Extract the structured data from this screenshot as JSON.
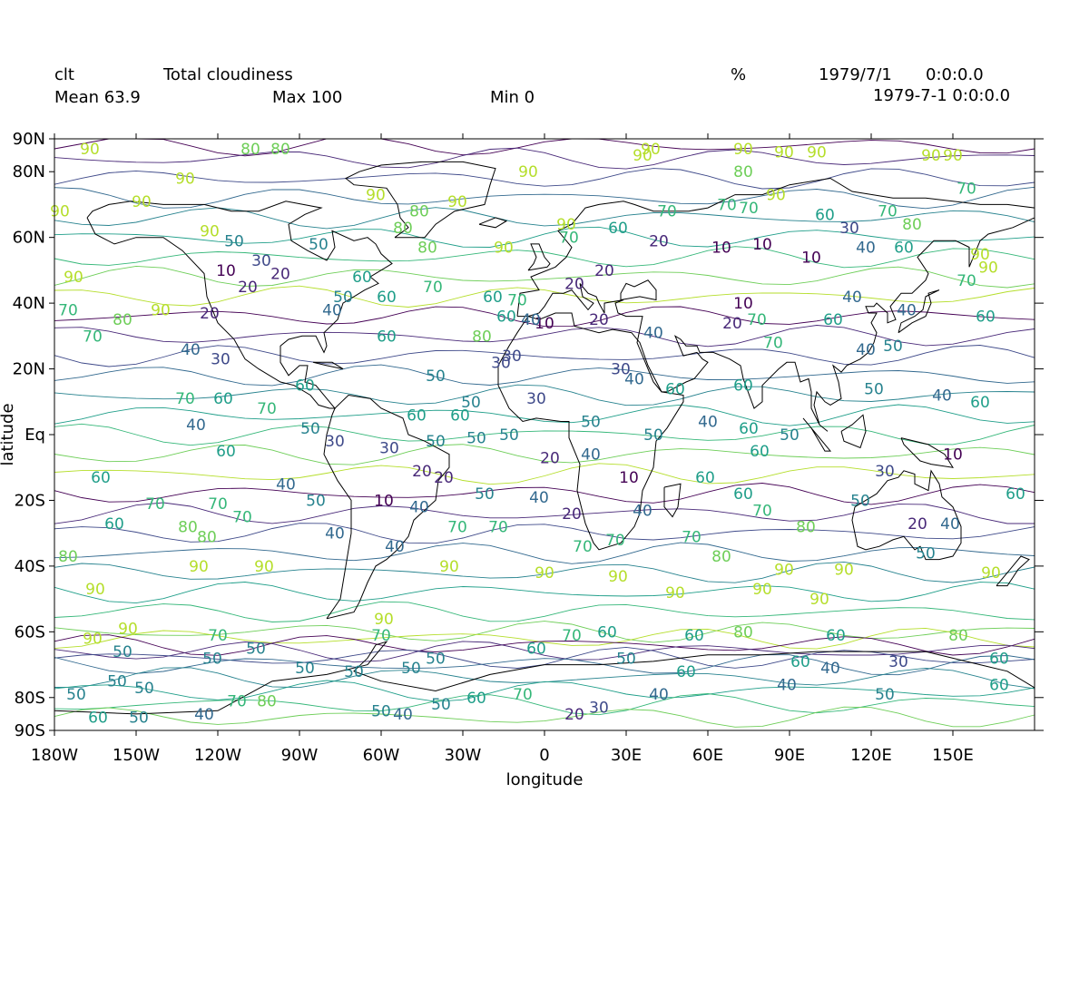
{
  "header": {
    "variable": "clt",
    "long_name": "Total cloudiness",
    "units": "%",
    "date": "1979/7/1",
    "time": "0:0:0.0",
    "mean": "Mean 63.9",
    "max": "Max 100",
    "min": "Min 0",
    "timestamp": "1979-7-1 0:0:0.0"
  },
  "axes": {
    "xlabel": "longitude",
    "ylabel": "latitude",
    "xlim": [
      -180,
      180
    ],
    "ylim": [
      -90,
      90
    ],
    "x_ticks": [
      {
        "value": -180,
        "label": "180W"
      },
      {
        "value": -150,
        "label": "150W"
      },
      {
        "value": -120,
        "label": "120W"
      },
      {
        "value": -90,
        "label": "90W"
      },
      {
        "value": -60,
        "label": "60W"
      },
      {
        "value": -30,
        "label": "30W"
      },
      {
        "value": 0,
        "label": "0"
      },
      {
        "value": 30,
        "label": "30E"
      },
      {
        "value": 60,
        "label": "60E"
      },
      {
        "value": 90,
        "label": "90E"
      },
      {
        "value": 120,
        "label": "120E"
      },
      {
        "value": 150,
        "label": "150E"
      }
    ],
    "y_ticks": [
      {
        "value": 90,
        "label": "90N"
      },
      {
        "value": 80,
        "label": "80N"
      },
      {
        "value": 60,
        "label": "60N"
      },
      {
        "value": 40,
        "label": "40N"
      },
      {
        "value": 20,
        "label": "20N"
      },
      {
        "value": 0,
        "label": "Eq"
      },
      {
        "value": -20,
        "label": "20S"
      },
      {
        "value": -40,
        "label": "40S"
      },
      {
        "value": -60,
        "label": "60S"
      },
      {
        "value": -80,
        "label": "80S"
      },
      {
        "value": -90,
        "label": "90S"
      }
    ]
  },
  "colors": {
    "10": "#440154",
    "20": "#482878",
    "30": "#3e4989",
    "40": "#31688e",
    "50": "#26828e",
    "60": "#1f9e89",
    "70": "#35b779",
    "80": "#6ece58",
    "90": "#b5de2b",
    "coast": "#000000"
  },
  "contour_labels": [
    {
      "lon": -167,
      "lat": 87,
      "v": 90
    },
    {
      "lon": -108,
      "lat": 87,
      "v": 80
    },
    {
      "lon": -97,
      "lat": 87,
      "v": 80
    },
    {
      "lon": -132,
      "lat": 78,
      "v": 90
    },
    {
      "lon": -148,
      "lat": 71,
      "v": 90
    },
    {
      "lon": -178,
      "lat": 68,
      "v": 90
    },
    {
      "lon": -123,
      "lat": 62,
      "v": 90
    },
    {
      "lon": -173,
      "lat": 48,
      "v": 90
    },
    {
      "lon": -175,
      "lat": 38,
      "v": 70
    },
    {
      "lon": -155,
      "lat": 35,
      "v": 80
    },
    {
      "lon": -166,
      "lat": 30,
      "v": 70
    },
    {
      "lon": -141,
      "lat": 38,
      "v": 90
    },
    {
      "lon": -114,
      "lat": 59,
      "v": 50
    },
    {
      "lon": -117,
      "lat": 50,
      "v": 10
    },
    {
      "lon": -109,
      "lat": 45,
      "v": 20
    },
    {
      "lon": -123,
      "lat": 37,
      "v": 20
    },
    {
      "lon": -130,
      "lat": 26,
      "v": 40
    },
    {
      "lon": -119,
      "lat": 23,
      "v": 30
    },
    {
      "lon": -97,
      "lat": 49,
      "v": 20
    },
    {
      "lon": -104,
      "lat": 53,
      "v": 30
    },
    {
      "lon": -83,
      "lat": 58,
      "v": 50
    },
    {
      "lon": -74,
      "lat": 42,
      "v": 50
    },
    {
      "lon": -67,
      "lat": 48,
      "v": 60
    },
    {
      "lon": -58,
      "lat": 42,
      "v": 60
    },
    {
      "lon": -58,
      "lat": 30,
      "v": 60
    },
    {
      "lon": -41,
      "lat": 45,
      "v": 70
    },
    {
      "lon": -46,
      "lat": 68,
      "v": 80
    },
    {
      "lon": -62,
      "lat": 73,
      "v": 90
    },
    {
      "lon": -52,
      "lat": 63,
      "v": 80
    },
    {
      "lon": -43,
      "lat": 57,
      "v": 80
    },
    {
      "lon": -32,
      "lat": 71,
      "v": 90
    },
    {
      "lon": -15,
      "lat": 57,
      "v": 90
    },
    {
      "lon": -6,
      "lat": 80,
      "v": 90
    },
    {
      "lon": -19,
      "lat": 42,
      "v": 60
    },
    {
      "lon": -10,
      "lat": 41,
      "v": 70
    },
    {
      "lon": -14,
      "lat": 36,
      "v": 60
    },
    {
      "lon": -23,
      "lat": 30,
      "v": 80
    },
    {
      "lon": -40,
      "lat": 18,
      "v": 50
    },
    {
      "lon": -27,
      "lat": 10,
      "v": 50
    },
    {
      "lon": -16,
      "lat": 22,
      "v": 30
    },
    {
      "lon": -3,
      "lat": 11,
      "v": 30
    },
    {
      "lon": 0,
      "lat": 34,
      "v": 10
    },
    {
      "lon": 11,
      "lat": 46,
      "v": 20
    },
    {
      "lon": 22,
      "lat": 50,
      "v": 20
    },
    {
      "lon": 20,
      "lat": 35,
      "v": 20
    },
    {
      "lon": 40,
      "lat": 31,
      "v": 40
    },
    {
      "lon": 39,
      "lat": 87,
      "v": 90
    },
    {
      "lon": 36,
      "lat": 85,
      "v": 90
    },
    {
      "lon": 8,
      "lat": 64,
      "v": 90
    },
    {
      "lon": 9,
      "lat": 60,
      "v": 70
    },
    {
      "lon": 27,
      "lat": 63,
      "v": 60
    },
    {
      "lon": 45,
      "lat": 68,
      "v": 70
    },
    {
      "lon": 42,
      "lat": 59,
      "v": 20
    },
    {
      "lon": 65,
      "lat": 57,
      "v": 10
    },
    {
      "lon": 80,
      "lat": 58,
      "v": 10
    },
    {
      "lon": 98,
      "lat": 54,
      "v": 10
    },
    {
      "lon": 73,
      "lat": 40,
      "v": 10
    },
    {
      "lon": 69,
      "lat": 34,
      "v": 20
    },
    {
      "lon": 78,
      "lat": 35,
      "v": 70
    },
    {
      "lon": 84,
      "lat": 28,
      "v": 70
    },
    {
      "lon": 73,
      "lat": 87,
      "v": 90
    },
    {
      "lon": 88,
      "lat": 86,
      "v": 90
    },
    {
      "lon": 100,
      "lat": 86,
      "v": 90
    },
    {
      "lon": 73,
      "lat": 80,
      "v": 80
    },
    {
      "lon": 85,
      "lat": 73,
      "v": 90
    },
    {
      "lon": 75,
      "lat": 69,
      "v": 70
    },
    {
      "lon": 67,
      "lat": 70,
      "v": 70
    },
    {
      "lon": 103,
      "lat": 67,
      "v": 60
    },
    {
      "lon": 112,
      "lat": 63,
      "v": 30
    },
    {
      "lon": 118,
      "lat": 57,
      "v": 40
    },
    {
      "lon": 126,
      "lat": 68,
      "v": 70
    },
    {
      "lon": 135,
      "lat": 64,
      "v": 80
    },
    {
      "lon": 142,
      "lat": 85,
      "v": 90
    },
    {
      "lon": 150,
      "lat": 85,
      "v": 90
    },
    {
      "lon": 155,
      "lat": 75,
      "v": 70
    },
    {
      "lon": 132,
      "lat": 57,
      "v": 60
    },
    {
      "lon": 160,
      "lat": 55,
      "v": 90
    },
    {
      "lon": 163,
      "lat": 51,
      "v": 90
    },
    {
      "lon": 155,
      "lat": 47,
      "v": 70
    },
    {
      "lon": 113,
      "lat": 42,
      "v": 40
    },
    {
      "lon": 133,
      "lat": 38,
      "v": 40
    },
    {
      "lon": 162,
      "lat": 36,
      "v": 60
    },
    {
      "lon": 106,
      "lat": 35,
      "v": 60
    },
    {
      "lon": 118,
      "lat": 26,
      "v": 40
    },
    {
      "lon": 128,
      "lat": 27,
      "v": 50
    },
    {
      "lon": 121,
      "lat": 14,
      "v": 50
    },
    {
      "lon": 146,
      "lat": 12,
      "v": 40
    },
    {
      "lon": 160,
      "lat": 10,
      "v": 60
    },
    {
      "lon": 28,
      "lat": 20,
      "v": 30
    },
    {
      "lon": 33,
      "lat": 17,
      "v": 40
    },
    {
      "lon": 48,
      "lat": 14,
      "v": 60
    },
    {
      "lon": 73,
      "lat": 15,
      "v": 60
    },
    {
      "lon": 60,
      "lat": 4,
      "v": 40
    },
    {
      "lon": 75,
      "lat": 2,
      "v": 60
    },
    {
      "lon": 79,
      "lat": -5,
      "v": 60
    },
    {
      "lon": 90,
      "lat": 0,
      "v": 50
    },
    {
      "lon": 40,
      "lat": 0,
      "v": 50
    },
    {
      "lon": 17,
      "lat": 4,
      "v": 50
    },
    {
      "lon": 17,
      "lat": -6,
      "v": 40
    },
    {
      "lon": 31,
      "lat": -13,
      "v": 10
    },
    {
      "lon": 2,
      "lat": -7,
      "v": 20
    },
    {
      "lon": -2,
      "lat": -19,
      "v": 40
    },
    {
      "lon": 10,
      "lat": -24,
      "v": 20
    },
    {
      "lon": 14,
      "lat": -34,
      "v": 70
    },
    {
      "lon": 26,
      "lat": -32,
      "v": 70
    },
    {
      "lon": 36,
      "lat": -23,
      "v": 40
    },
    {
      "lon": 59,
      "lat": -13,
      "v": 60
    },
    {
      "lon": 73,
      "lat": -18,
      "v": 60
    },
    {
      "lon": 80,
      "lat": -23,
      "v": 70
    },
    {
      "lon": 96,
      "lat": -28,
      "v": 80
    },
    {
      "lon": 54,
      "lat": -31,
      "v": 70
    },
    {
      "lon": 65,
      "lat": -37,
      "v": 80
    },
    {
      "lon": 88,
      "lat": -41,
      "v": 90
    },
    {
      "lon": 110,
      "lat": -41,
      "v": 90
    },
    {
      "lon": 80,
      "lat": -47,
      "v": 90
    },
    {
      "lon": 101,
      "lat": -50,
      "v": 90
    },
    {
      "lon": 48,
      "lat": -48,
      "v": 90
    },
    {
      "lon": 27,
      "lat": -43,
      "v": 90
    },
    {
      "lon": 0,
      "lat": -42,
      "v": 90
    },
    {
      "lon": 116,
      "lat": -20,
      "v": 50
    },
    {
      "lon": 125,
      "lat": -11,
      "v": 30
    },
    {
      "lon": 137,
      "lat": -27,
      "v": 20
    },
    {
      "lon": 149,
      "lat": -27,
      "v": 40
    },
    {
      "lon": 140,
      "lat": -36,
      "v": 50
    },
    {
      "lon": 150,
      "lat": -6,
      "v": 10
    },
    {
      "lon": 173,
      "lat": -18,
      "v": 60
    },
    {
      "lon": 164,
      "lat": -42,
      "v": 90
    },
    {
      "lon": -127,
      "lat": -40,
      "v": 90
    },
    {
      "lon": -103,
      "lat": -40,
      "v": 90
    },
    {
      "lon": -175,
      "lat": -37,
      "v": 80
    },
    {
      "lon": -165,
      "lat": -47,
      "v": 90
    },
    {
      "lon": -131,
      "lat": -28,
      "v": 80
    },
    {
      "lon": -124,
      "lat": -31,
      "v": 80
    },
    {
      "lon": -158,
      "lat": -27,
      "v": 60
    },
    {
      "lon": -143,
      "lat": -21,
      "v": 70
    },
    {
      "lon": -120,
      "lat": -21,
      "v": 70
    },
    {
      "lon": -111,
      "lat": -25,
      "v": 70
    },
    {
      "lon": -163,
      "lat": -13,
      "v": 60
    },
    {
      "lon": -117,
      "lat": -5,
      "v": 60
    },
    {
      "lon": -128,
      "lat": 3,
      "v": 40
    },
    {
      "lon": -132,
      "lat": 11,
      "v": 70
    },
    {
      "lon": -118,
      "lat": 11,
      "v": 60
    },
    {
      "lon": -102,
      "lat": 8,
      "v": 70
    },
    {
      "lon": -86,
      "lat": 2,
      "v": 50
    },
    {
      "lon": -77,
      "lat": -2,
      "v": 30
    },
    {
      "lon": -57,
      "lat": -4,
      "v": 30
    },
    {
      "lon": -45,
      "lat": -11,
      "v": 20
    },
    {
      "lon": -37,
      "lat": -13,
      "v": 20
    },
    {
      "lon": -95,
      "lat": -15,
      "v": 40
    },
    {
      "lon": -84,
      "lat": -20,
      "v": 50
    },
    {
      "lon": -59,
      "lat": -20,
      "v": 10
    },
    {
      "lon": -46,
      "lat": -22,
      "v": 40
    },
    {
      "lon": -77,
      "lat": -30,
      "v": 40
    },
    {
      "lon": -55,
      "lat": -34,
      "v": 40
    },
    {
      "lon": -35,
      "lat": -40,
      "v": 90
    },
    {
      "lon": -32,
      "lat": -28,
      "v": 70
    },
    {
      "lon": -22,
      "lat": -18,
      "v": 50
    },
    {
      "lon": -17,
      "lat": -28,
      "v": 70
    },
    {
      "lon": -25,
      "lat": -1,
      "v": 50
    },
    {
      "lon": -13,
      "lat": 0,
      "v": 50
    },
    {
      "lon": -40,
      "lat": -2,
      "v": 50
    },
    {
      "lon": -47,
      "lat": 6,
      "v": 60
    },
    {
      "lon": -31,
      "lat": 6,
      "v": 60
    },
    {
      "lon": -88,
      "lat": 15,
      "v": 60
    },
    {
      "lon": -78,
      "lat": 38,
      "v": 40
    },
    {
      "lon": -12,
      "lat": 24,
      "v": 30
    },
    {
      "lon": -5,
      "lat": 35,
      "v": 40
    },
    {
      "lon": -166,
      "lat": -62,
      "v": 90
    },
    {
      "lon": -153,
      "lat": -59,
      "v": 90
    },
    {
      "lon": -120,
      "lat": -61,
      "v": 70
    },
    {
      "lon": -60,
      "lat": -61,
      "v": 70
    },
    {
      "lon": -59,
      "lat": -56,
      "v": 90
    },
    {
      "lon": 10,
      "lat": -61,
      "v": 70
    },
    {
      "lon": 23,
      "lat": -60,
      "v": 60
    },
    {
      "lon": 55,
      "lat": -61,
      "v": 60
    },
    {
      "lon": 73,
      "lat": -60,
      "v": 80
    },
    {
      "lon": 107,
      "lat": -61,
      "v": 60
    },
    {
      "lon": 152,
      "lat": -61,
      "v": 80
    },
    {
      "lon": 167,
      "lat": -68,
      "v": 60
    },
    {
      "lon": -3,
      "lat": -65,
      "v": 60
    },
    {
      "lon": 30,
      "lat": -68,
      "v": 50
    },
    {
      "lon": 52,
      "lat": -72,
      "v": 60
    },
    {
      "lon": 94,
      "lat": -69,
      "v": 60
    },
    {
      "lon": 105,
      "lat": -71,
      "v": 40
    },
    {
      "lon": 130,
      "lat": -69,
      "v": 30
    },
    {
      "lon": -155,
      "lat": -66,
      "v": 50
    },
    {
      "lon": -106,
      "lat": -65,
      "v": 50
    },
    {
      "lon": -122,
      "lat": -68,
      "v": 50
    },
    {
      "lon": -88,
      "lat": -71,
      "v": 50
    },
    {
      "lon": -70,
      "lat": -72,
      "v": 50
    },
    {
      "lon": -49,
      "lat": -71,
      "v": 50
    },
    {
      "lon": -40,
      "lat": -68,
      "v": 50
    },
    {
      "lon": -157,
      "lat": -75,
      "v": 50
    },
    {
      "lon": -147,
      "lat": -77,
      "v": 50
    },
    {
      "lon": -172,
      "lat": -79,
      "v": 50
    },
    {
      "lon": -164,
      "lat": -86,
      "v": 60
    },
    {
      "lon": -149,
      "lat": -86,
      "v": 50
    },
    {
      "lon": -125,
      "lat": -85,
      "v": 40
    },
    {
      "lon": -113,
      "lat": -81,
      "v": 70
    },
    {
      "lon": -102,
      "lat": -81,
      "v": 80
    },
    {
      "lon": -60,
      "lat": -84,
      "v": 50
    },
    {
      "lon": -52,
      "lat": -85,
      "v": 40
    },
    {
      "lon": -38,
      "lat": -82,
      "v": 50
    },
    {
      "lon": -25,
      "lat": -80,
      "v": 60
    },
    {
      "lon": -8,
      "lat": -79,
      "v": 70
    },
    {
      "lon": 11,
      "lat": -85,
      "v": 20
    },
    {
      "lon": 20,
      "lat": -83,
      "v": 30
    },
    {
      "lon": 42,
      "lat": -79,
      "v": 40
    },
    {
      "lon": 89,
      "lat": -76,
      "v": 40
    },
    {
      "lon": 125,
      "lat": -79,
      "v": 50
    },
    {
      "lon": 167,
      "lat": -76,
      "v": 60
    }
  ]
}
